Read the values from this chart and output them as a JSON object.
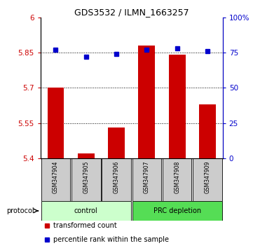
{
  "title": "GDS3532 / ILMN_1663257",
  "categories": [
    "GSM347904",
    "GSM347905",
    "GSM347906",
    "GSM347907",
    "GSM347908",
    "GSM347909"
  ],
  "bar_values": [
    5.7,
    5.42,
    5.53,
    5.88,
    5.84,
    5.63
  ],
  "bar_bottom": 5.4,
  "bar_color": "#cc0000",
  "percentile_values": [
    77,
    72,
    74,
    77,
    78,
    76
  ],
  "percentile_color": "#0000cc",
  "ylim_left": [
    5.4,
    6.0
  ],
  "ylim_right": [
    0,
    100
  ],
  "yticks_left": [
    5.4,
    5.55,
    5.7,
    5.85,
    6.0
  ],
  "ytick_labels_left": [
    "5.4",
    "5.55",
    "5.7",
    "5.85",
    "6"
  ],
  "yticks_right": [
    0,
    25,
    50,
    75,
    100
  ],
  "ytick_labels_right": [
    "0",
    "25",
    "50",
    "75",
    "100%"
  ],
  "dotted_lines": [
    5.55,
    5.7,
    5.85
  ],
  "groups": [
    {
      "label": "control",
      "indices": [
        0,
        1,
        2
      ],
      "facecolor": "#ccffcc",
      "edgecolor": "#000000"
    },
    {
      "label": "PRC depletion",
      "indices": [
        3,
        4,
        5
      ],
      "facecolor": "#55dd55",
      "edgecolor": "#000000"
    }
  ],
  "sample_box_color": "#cccccc",
  "legend_items": [
    {
      "label": "transformed count",
      "color": "#cc0000"
    },
    {
      "label": "percentile rank within the sample",
      "color": "#0000cc"
    }
  ],
  "protocol_label": "protocol",
  "background_color": "#ffffff",
  "left_tick_color": "#cc0000",
  "right_tick_color": "#0000cc",
  "title_fontsize": 9,
  "axis_fontsize": 7.5,
  "legend_fontsize": 7
}
